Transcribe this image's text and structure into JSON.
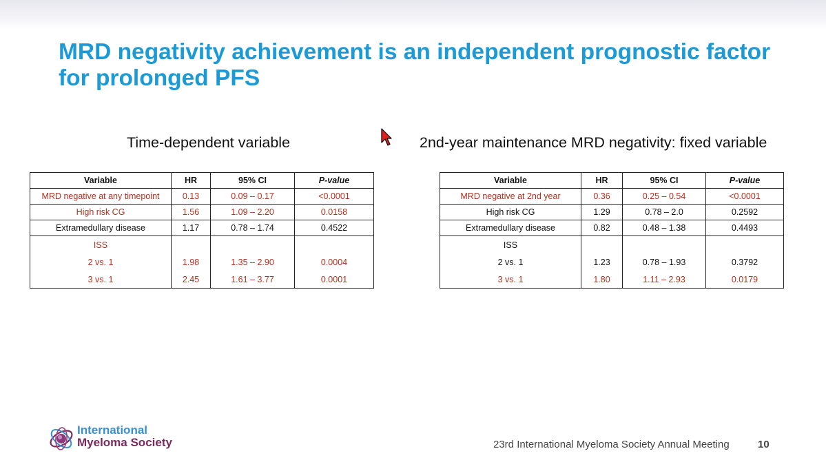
{
  "slide": {
    "title": "MRD negativity achievement is an independent prognostic factor for prolonged PFS",
    "footer": "23rd International Myeloma Society Annual Meeting",
    "page_number": "10",
    "logo": {
      "line1": "International",
      "line2": "Myeloma Society"
    }
  },
  "colors": {
    "title": "#1b9ad6",
    "highlight": "#b5301e"
  },
  "left_table": {
    "subtitle": "Time-dependent variable",
    "headers": [
      "Variable",
      "HR",
      "95% CI",
      "P-value"
    ],
    "rows": [
      [
        "MRD negative at any timepoint",
        "0.13",
        "0.09 – 0.17",
        "<0.0001"
      ],
      [
        "High risk CG",
        "1.56",
        "1.09 – 2.20",
        "0.0158"
      ],
      [
        "Extramedullary disease",
        "1.17",
        "0.78 – 1.74",
        "0.4522"
      ]
    ],
    "iss_label": "ISS",
    "iss_rows": [
      [
        "2 vs. 1",
        "1.98",
        "1.35 – 2.90",
        "0.0004"
      ],
      [
        "3 vs. 1",
        "2.45",
        "1.61 – 3.77",
        "0.0001"
      ]
    ]
  },
  "right_table": {
    "subtitle": "2nd-year maintenance MRD negativity: fixed variable",
    "headers": [
      "Variable",
      "HR",
      "95% CI",
      "P-value"
    ],
    "rows": [
      [
        "MRD negative at 2nd year",
        "0.36",
        "0.25 – 0.54",
        "<0.0001"
      ],
      [
        "High risk CG",
        "1.29",
        "0.78 – 2.0",
        "0.2592"
      ],
      [
        "Extramedullary disease",
        "0.82",
        "0.48 – 1.38",
        "0.4493"
      ]
    ],
    "iss_label": "ISS",
    "iss_rows": [
      [
        "2 vs. 1",
        "1.23",
        "0.78 – 1.93",
        "0.3792"
      ],
      [
        "3 vs. 1",
        "1.80",
        "1.11 – 2.93",
        "0.0179"
      ]
    ]
  }
}
